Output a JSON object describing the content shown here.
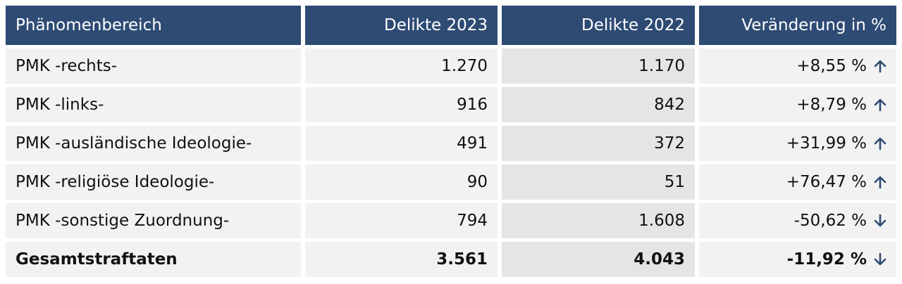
{
  "table": {
    "header": [
      "Phänomenbereich",
      "Delikte 2023",
      "Delikte 2022",
      "Veränderung in %"
    ],
    "rows": [
      [
        "PMK -rechts-",
        "1.270",
        "1.170",
        "+8,55 %"
      ],
      [
        "PMK -links-",
        "916",
        "842",
        "+8,79 %"
      ],
      [
        "PMK -ausländische Ideologie-",
        "491",
        "372",
        "+31,99 %"
      ],
      [
        "PMK -religiöse Ideologie-",
        "90",
        "51",
        "+76,47 %"
      ],
      [
        "PMK -sonstige Zuordnung-",
        "794",
        "1.608",
        "-50,62 %"
      ],
      [
        "Gesamtstraftaten",
        "3.561",
        "4.043",
        "-11,92 %"
      ]
    ]
  }
}
